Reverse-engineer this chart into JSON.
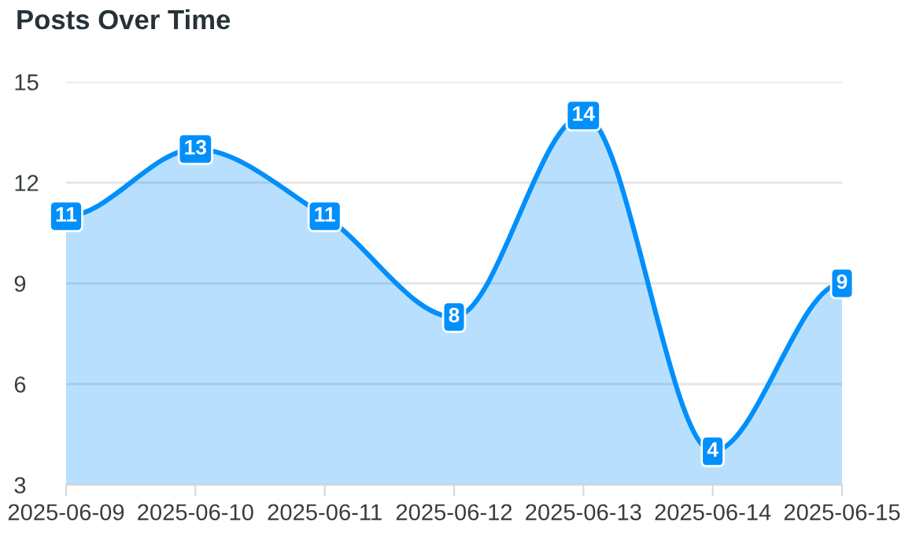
{
  "chart_data": {
    "type": "area",
    "title": "Posts Over Time",
    "categories": [
      "2025-06-09",
      "2025-06-10",
      "2025-06-11",
      "2025-06-12",
      "2025-06-13",
      "2025-06-14",
      "2025-06-15"
    ],
    "series": [
      {
        "color": "#008ffb",
        "values": [
          11,
          13,
          11,
          8,
          14,
          4,
          9
        ]
      }
    ],
    "ylim": [
      3,
      15
    ],
    "yticks": [
      3,
      6,
      9,
      12,
      15
    ],
    "grid": "y",
    "data_labels": true,
    "line_style": "solid"
  }
}
